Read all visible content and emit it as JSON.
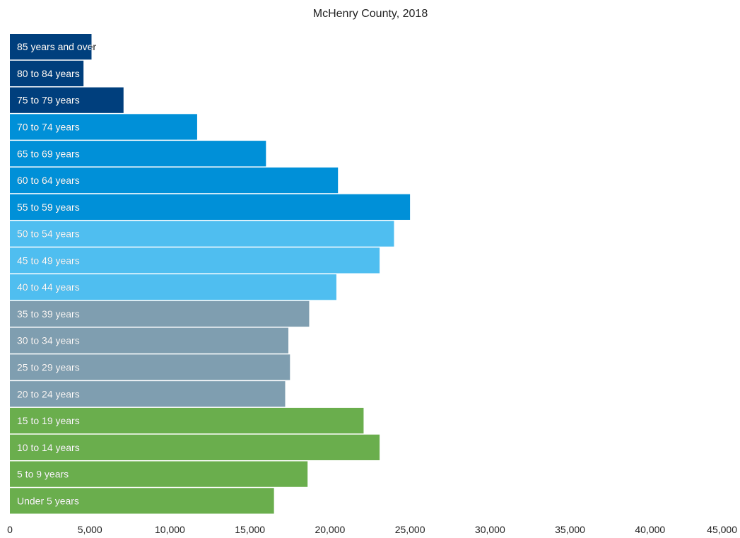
{
  "chart_data": {
    "type": "bar",
    "orientation": "horizontal",
    "title": "McHenry County, 2018",
    "xlabel": "",
    "ylabel": "",
    "xlim": [
      0,
      45000
    ],
    "x_ticks": [
      0,
      5000,
      10000,
      15000,
      20000,
      25000,
      30000,
      35000,
      40000,
      45000
    ],
    "x_tick_labels": [
      "0",
      "5,000",
      "10,000",
      "15,000",
      "20,000",
      "25,000",
      "30,000",
      "35,000",
      "40,000",
      "45,000"
    ],
    "grid": false,
    "legend": "none",
    "categories": [
      "85 years and over",
      "80 to 84 years",
      "75 to 79 years",
      "70 to 74 years",
      "65 to 69 years",
      "60 to 64 years",
      "55 to 59 years",
      "50 to 54 years",
      "45 to 49 years",
      "40 to 44 years",
      "35 to 39 years",
      "30 to 34 years",
      "25 to 29 years",
      "20 to 24 years",
      "15 to 19 years",
      "10 to 14 years",
      "5 to 9 years",
      "Under 5 years"
    ],
    "values": [
      5100,
      4600,
      7100,
      11700,
      16000,
      20500,
      25000,
      24000,
      23100,
      20400,
      18700,
      17400,
      17500,
      17200,
      22100,
      23100,
      18600,
      16500
    ],
    "colors": [
      "#003f7d",
      "#003f7d",
      "#003f7d",
      "#0090d8",
      "#0090d8",
      "#0090d8",
      "#0090d8",
      "#4fbef0",
      "#4fbef0",
      "#4fbef0",
      "#7f9eb0",
      "#7f9eb0",
      "#7f9eb0",
      "#7f9eb0",
      "#6aae4d",
      "#6aae4d",
      "#6aae4d",
      "#6aae4d"
    ]
  }
}
